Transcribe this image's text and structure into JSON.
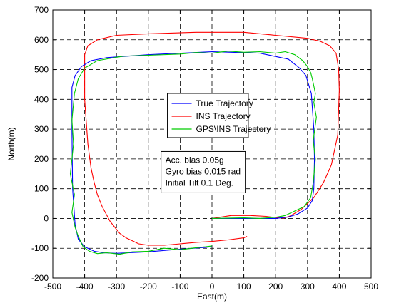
{
  "chart_data": {
    "type": "line",
    "title": "",
    "xlabel": "East(m)",
    "ylabel": "North(m)",
    "xlim": [
      -500,
      500
    ],
    "ylim": [
      -200,
      700
    ],
    "xticks": [
      -500,
      -400,
      -300,
      -200,
      -100,
      0,
      100,
      200,
      300,
      400,
      500
    ],
    "yticks": [
      -200,
      -100,
      0,
      100,
      200,
      300,
      400,
      500,
      600,
      700
    ],
    "grid": true,
    "legend_position": "top-center",
    "annotation": [
      "Acc. bias 0.05g",
      "Gyro bias 0.015 rad",
      "Initial Tilt 0.1 Deg."
    ],
    "series": [
      {
        "name": "True Trajectory",
        "color": "#0000ff",
        "x": [
          0,
          200,
          240,
          270,
          300,
          315,
          320,
          322,
          320,
          312,
          295,
          275,
          240,
          150,
          0,
          -200,
          -330,
          -380,
          -410,
          -430,
          -440,
          -440,
          -438,
          -430,
          -420,
          -400,
          -370,
          -340,
          -300,
          -200,
          -100,
          -20,
          0
        ],
        "y": [
          0,
          0,
          5,
          15,
          35,
          60,
          100,
          200,
          300,
          420,
          480,
          505,
          535,
          555,
          560,
          550,
          540,
          530,
          510,
          480,
          440,
          300,
          100,
          -20,
          -70,
          -95,
          -110,
          -115,
          -117,
          -112,
          -103,
          -97,
          -95
        ]
      },
      {
        "name": "INS Trajectory",
        "color": "#ff0000",
        "x": [
          0,
          60,
          120,
          170,
          200,
          225,
          245,
          280,
          320,
          350,
          375,
          395,
          400,
          398,
          390,
          370,
          340,
          300,
          200,
          100,
          -50,
          -200,
          -300,
          -360,
          -390,
          -400,
          -400,
          -390,
          -380,
          -370,
          -360,
          -345,
          -330,
          -320,
          -305,
          -290,
          -270,
          -250,
          -230,
          -200,
          -150,
          -100,
          -50,
          0,
          50,
          100,
          110
        ],
        "y": [
          0,
          10,
          10,
          7,
          3,
          1,
          8,
          30,
          70,
          120,
          180,
          280,
          430,
          500,
          555,
          580,
          595,
          605,
          615,
          625,
          625,
          620,
          615,
          600,
          580,
          550,
          400,
          250,
          170,
          120,
          80,
          40,
          10,
          -10,
          -30,
          -50,
          -65,
          -75,
          -85,
          -90,
          -90,
          -85,
          -80,
          -77,
          -72,
          -65,
          -60
        ]
      },
      {
        "name": "GPS\\INS Trajectory",
        "color": "#00cc00",
        "x": [
          0,
          100,
          150,
          200,
          230,
          260,
          290,
          310,
          318,
          325,
          318,
          328,
          320,
          325,
          315,
          310,
          300,
          285,
          260,
          230,
          200,
          150,
          100,
          50,
          0,
          -50,
          -100,
          -200,
          -280,
          -360,
          -400,
          -420,
          -432,
          -440,
          -435,
          -445,
          -432,
          -440,
          -430,
          -420,
          -405,
          -385,
          -360,
          -330,
          -290,
          -250,
          -200,
          -150,
          -100,
          -50,
          -20,
          0
        ],
        "y": [
          0,
          2,
          0,
          4,
          10,
          25,
          40,
          70,
          120,
          200,
          260,
          340,
          390,
          420,
          470,
          490,
          510,
          530,
          550,
          560,
          555,
          560,
          558,
          562,
          555,
          557,
          552,
          548,
          545,
          530,
          505,
          470,
          420,
          330,
          250,
          150,
          80,
          20,
          -30,
          -60,
          -95,
          -110,
          -118,
          -115,
          -120,
          -112,
          -110,
          -100,
          -105,
          -98,
          -95,
          -92
        ]
      }
    ]
  }
}
